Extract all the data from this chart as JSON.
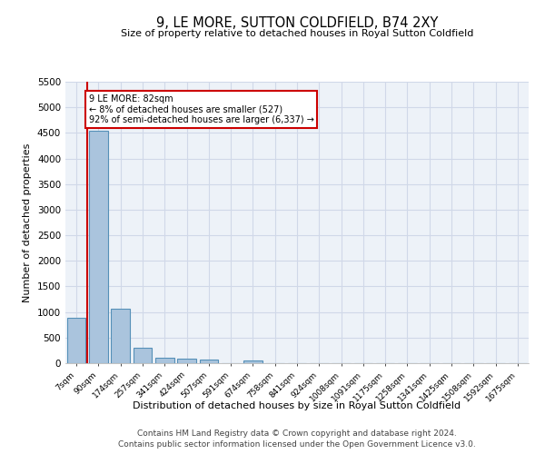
{
  "title": "9, LE MORE, SUTTON COLDFIELD, B74 2XY",
  "subtitle": "Size of property relative to detached houses in Royal Sutton Coldfield",
  "xlabel": "Distribution of detached houses by size in Royal Sutton Coldfield",
  "ylabel": "Number of detached properties",
  "footnote1": "Contains HM Land Registry data © Crown copyright and database right 2024.",
  "footnote2": "Contains public sector information licensed under the Open Government Licence v3.0.",
  "bar_labels": [
    "7sqm",
    "90sqm",
    "174sqm",
    "257sqm",
    "341sqm",
    "424sqm",
    "507sqm",
    "591sqm",
    "674sqm",
    "758sqm",
    "841sqm",
    "924sqm",
    "1008sqm",
    "1091sqm",
    "1175sqm",
    "1258sqm",
    "1341sqm",
    "1425sqm",
    "1508sqm",
    "1592sqm",
    "1675sqm"
  ],
  "bar_values": [
    880,
    4550,
    1060,
    300,
    100,
    80,
    70,
    0,
    60,
    0,
    0,
    0,
    0,
    0,
    0,
    0,
    0,
    0,
    0,
    0,
    0
  ],
  "bar_color": "#aac4dd",
  "bar_edge_color": "#5590b8",
  "vline_color": "#cc0000",
  "annotation_box_color": "#cc0000",
  "property_label": "9 LE MORE: 82sqm",
  "annotation_line1": "← 8% of detached houses are smaller (527)",
  "annotation_line2": "92% of semi-detached houses are larger (6,337) →",
  "grid_color": "#d0d8e8",
  "ylim": [
    0,
    5500
  ],
  "yticks": [
    0,
    500,
    1000,
    1500,
    2000,
    2500,
    3000,
    3500,
    4000,
    4500,
    5000,
    5500
  ],
  "bg_color": "#edf2f8",
  "vline_x": 0.5
}
